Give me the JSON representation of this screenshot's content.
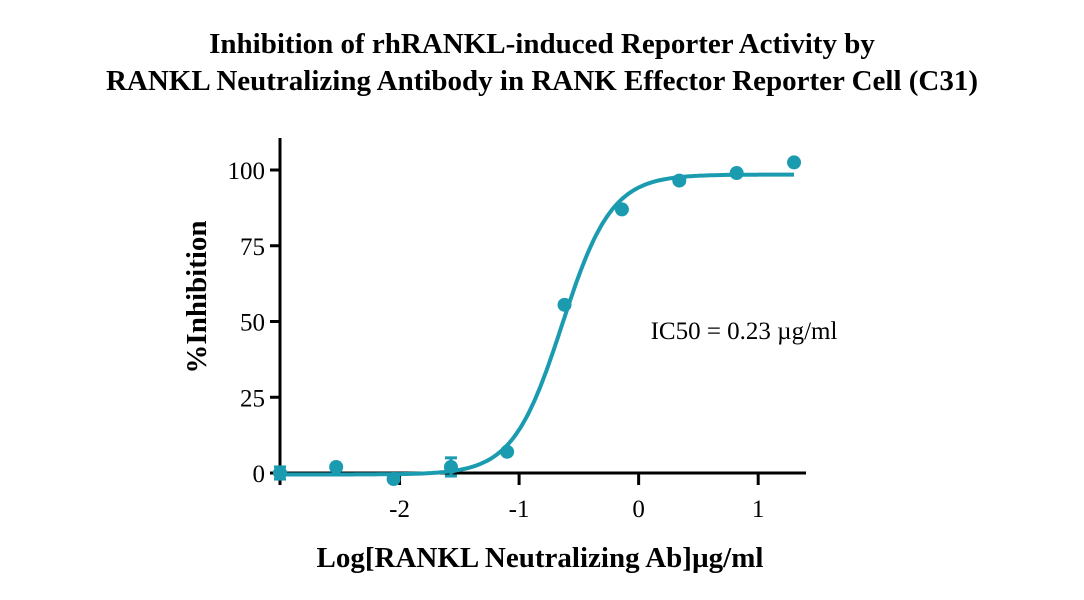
{
  "chart_data": {
    "type": "scatter",
    "title_lines": [
      "Inhibition of rhRANKL-induced Reporter Activity by",
      "RANKL Neutralizing Antibody in RANK Effector Reporter Cell (C31)"
    ],
    "xlabel": "Log[RANKL Neutralizing Ab]µg/ml",
    "ylabel": "%Inhibition",
    "xlim": [
      -3.0,
      1.4
    ],
    "ylim": [
      -3,
      111
    ],
    "xticks": [
      -2,
      -1,
      0,
      1
    ],
    "yticks": [
      0,
      25,
      50,
      75,
      100
    ],
    "annotation": "IC50 = 0.23 µg/ml",
    "color": "#1a9bb0",
    "points": {
      "x": [
        -3.0,
        -2.53,
        -2.05,
        -1.57,
        -1.1,
        -0.62,
        -0.14,
        0.34,
        0.82,
        1.3
      ],
      "y": [
        0,
        2,
        -2,
        2,
        7,
        55.5,
        87,
        96.5,
        99,
        102.5
      ],
      "error": [
        2,
        0,
        0,
        3,
        0,
        0,
        0,
        0,
        0,
        0
      ]
    },
    "fit_curve": {
      "model": "4PL",
      "bottom": -0.5,
      "top": 98.5,
      "log_ic50": -0.64,
      "hill_slope": 2.1,
      "x_start": -3.0,
      "x_end": 1.3
    }
  }
}
